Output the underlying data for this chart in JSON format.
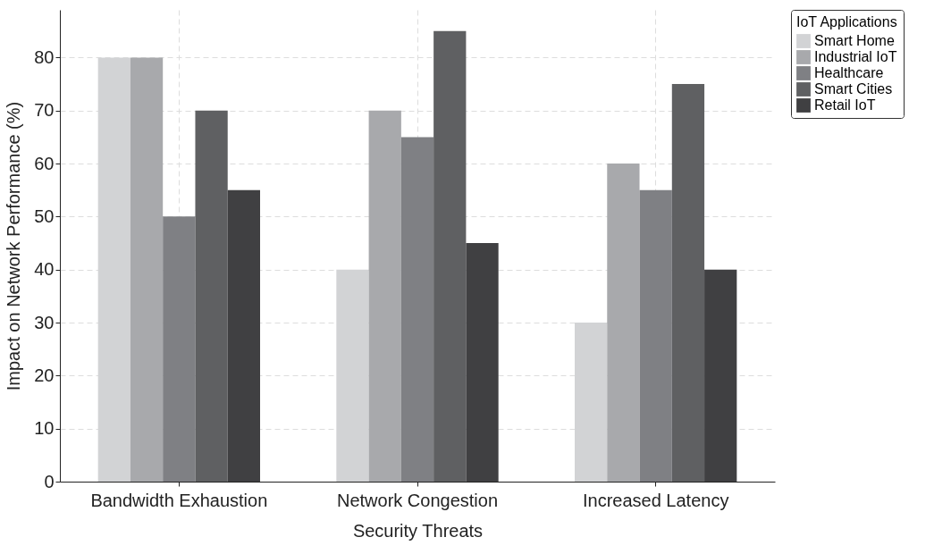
{
  "chart_data": {
    "type": "bar",
    "xlabel": "Security Threats",
    "ylabel": "Impact on Network Performance (%)",
    "legend_title": "IoT Applications",
    "categories": [
      "Bandwidth Exhaustion",
      "Network Congestion",
      "Increased Latency"
    ],
    "series": [
      {
        "name": "Smart Home",
        "color": "#d2d3d5",
        "values": [
          80,
          40,
          30
        ]
      },
      {
        "name": "Industrial IoT",
        "color": "#a8a9ac",
        "values": [
          80,
          70,
          60
        ]
      },
      {
        "name": "Healthcare",
        "color": "#7f8084",
        "values": [
          50,
          65,
          55
        ]
      },
      {
        "name": "Smart Cities",
        "color": "#5f6062",
        "values": [
          70,
          85,
          75
        ]
      },
      {
        "name": "Retail IoT",
        "color": "#404042",
        "values": [
          55,
          45,
          40
        ]
      }
    ],
    "ylim": [
      0,
      89
    ],
    "yticks": [
      0,
      10,
      20,
      30,
      40,
      50,
      60,
      70,
      80
    ],
    "grid": true,
    "legend": "top right"
  }
}
